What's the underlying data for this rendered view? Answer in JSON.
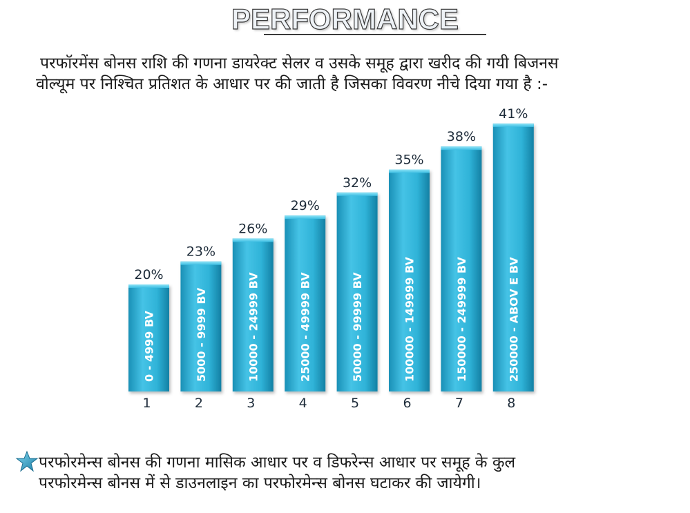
{
  "header": {
    "title": "PERFORMANCE"
  },
  "intro": {
    "line1": "परफॉरमेंस बोनस  राशि की गणना डायरेक्ट सेलर व उसके समूह द्वारा खरीद की गयी बिजनस",
    "line2": "वोल्यूम पर निश्चित प्रतिशत के आधार पर की जाती है जिसका विवरण नीचे दिया गया है :-"
  },
  "chart_data": {
    "type": "bar",
    "categories": [
      "1",
      "2",
      "3",
      "4",
      "5",
      "6",
      "7",
      "8"
    ],
    "values": [
      20,
      23,
      26,
      29,
      32,
      35,
      38,
      41
    ],
    "value_labels": [
      "20%",
      "23%",
      "26%",
      "29%",
      "32%",
      "35%",
      "38%",
      "41%"
    ],
    "bar_labels": [
      "0 -  4999 BV",
      "5000 - 9999 BV",
      "10000 - 24999 BV",
      "25000 - 49999 BV",
      "50000 - 99999 BV",
      "100000 - 149999 BV",
      "150000 - 249999 BV",
      "250000 - ABOV E BV"
    ],
    "colors": {
      "bar_light": "#5fd0ec",
      "bar_mid": "#2fb3d8",
      "bar_dark": "#1689ad"
    },
    "grid": false,
    "legend": "none"
  },
  "footer": {
    "icon": "star-icon",
    "line1": "परफोरमेन्स बोनस की गणना मासिक आधार पर व डिफरेन्स आधार पर समूह के कुल",
    "line2": "परफोरमेन्स बोनस में से डाउनलाइन  का परफोरमेन्स बोनस घटाकर की जायेगी।"
  }
}
